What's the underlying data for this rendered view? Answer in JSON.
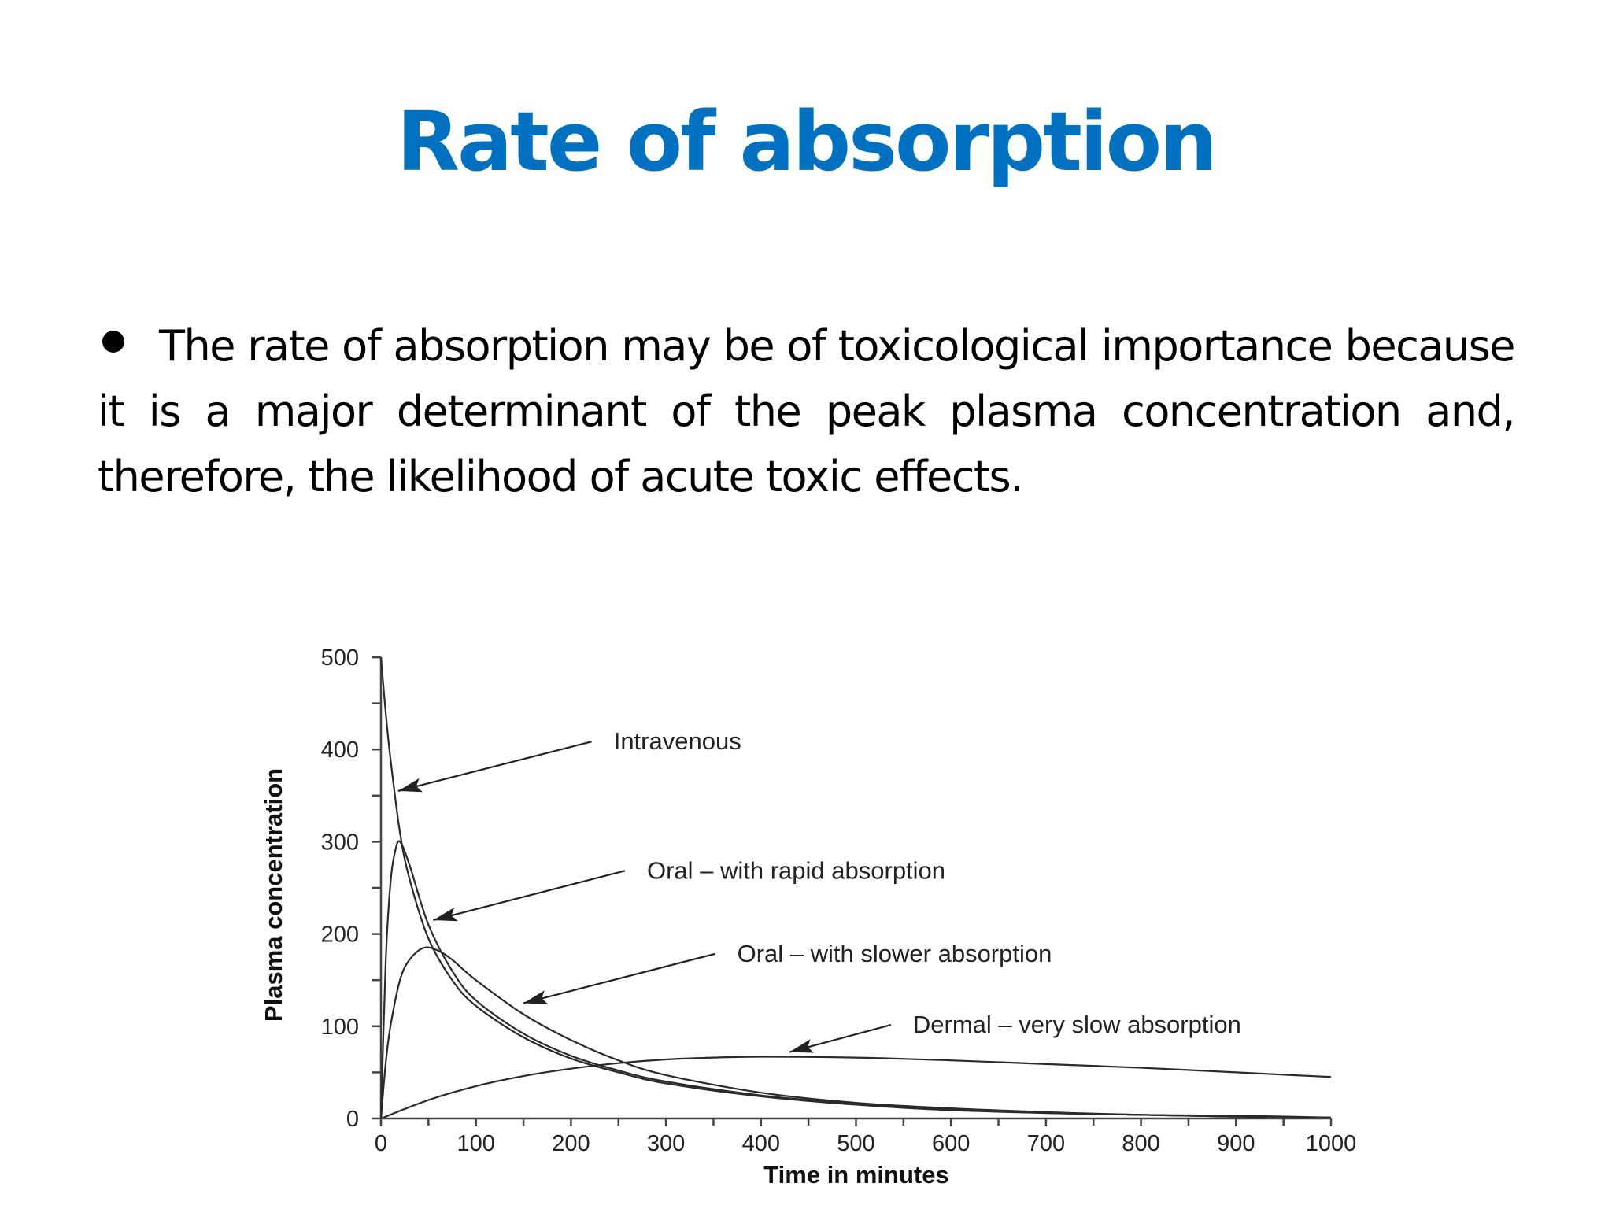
{
  "slide": {
    "title": "Rate of absorption",
    "title_color": "#0070C0",
    "bullet_text": "The rate of absorption may be of toxicological importance because it is a major determinant of the peak plasma concentration and, therefore, the likelihood of acute toxic effects."
  },
  "chart_data": {
    "type": "line",
    "title": "",
    "xlabel": "Time in minutes",
    "ylabel": "Plasma concentration",
    "xlim": [
      0,
      1000
    ],
    "ylim": [
      0,
      500
    ],
    "x_ticks": [
      0,
      100,
      200,
      300,
      400,
      500,
      600,
      700,
      800,
      900,
      1000
    ],
    "y_ticks": [
      0,
      100,
      200,
      300,
      400,
      500
    ],
    "grid": false,
    "legend": "annotated arrows",
    "series": [
      {
        "name": "Intravenous",
        "x": [
          0,
          5,
          10,
          20,
          30,
          50,
          75,
          100,
          150,
          200,
          250,
          300,
          400,
          500,
          600,
          700,
          800,
          900,
          1000
        ],
        "values": [
          500,
          440,
          390,
          310,
          260,
          195,
          150,
          122,
          88,
          65,
          50,
          38,
          24,
          15,
          9,
          6,
          4,
          2,
          1
        ]
      },
      {
        "name": "Oral – with rapid absorption",
        "x": [
          0,
          5,
          10,
          15,
          20,
          30,
          50,
          75,
          100,
          150,
          200,
          250,
          300,
          400,
          500,
          600,
          700,
          800,
          900,
          1000
        ],
        "values": [
          0,
          170,
          255,
          290,
          300,
          275,
          210,
          160,
          128,
          92,
          68,
          52,
          40,
          25,
          16,
          10,
          6,
          4,
          2,
          1
        ]
      },
      {
        "name": "Oral – with slower absorption",
        "x": [
          0,
          5,
          10,
          20,
          30,
          45,
          60,
          75,
          100,
          150,
          200,
          250,
          300,
          400,
          500,
          600,
          700,
          800,
          900,
          1000
        ],
        "values": [
          0,
          60,
          100,
          150,
          172,
          185,
          182,
          172,
          150,
          113,
          85,
          63,
          47,
          28,
          17,
          11,
          7,
          4,
          3,
          1
        ]
      },
      {
        "name": "Dermal – very slow absorption",
        "x": [
          0,
          50,
          100,
          150,
          200,
          250,
          300,
          350,
          400,
          500,
          600,
          700,
          800,
          900,
          1000
        ],
        "values": [
          0,
          20,
          35,
          46,
          54,
          60,
          64,
          66,
          67,
          66,
          63,
          59,
          55,
          50,
          45
        ]
      }
    ],
    "annotations": [
      {
        "text": "Intravenous",
        "text_xy": [
          245,
          400
        ],
        "arrow_to": [
          18,
          355
        ]
      },
      {
        "text": "Oral – with rapid absorption",
        "text_xy": [
          280,
          260
        ],
        "arrow_to": [
          55,
          215
        ]
      },
      {
        "text": "Oral – with slower absorption",
        "text_xy": [
          375,
          170
        ],
        "arrow_to": [
          150,
          125
        ]
      },
      {
        "text": "Dermal – very slow absorption",
        "text_xy": [
          560,
          93
        ],
        "arrow_to": [
          430,
          72
        ]
      }
    ]
  }
}
